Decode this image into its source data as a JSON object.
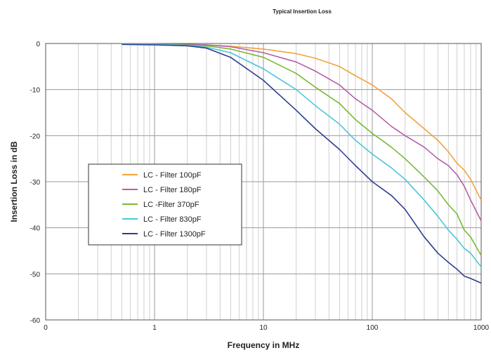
{
  "chart_data": {
    "type": "line",
    "title": "Typical Insertion Loss",
    "xlabel": "Frequency in MHz",
    "ylabel": "Insertion Loss in dB",
    "x_scale": "log",
    "xlim": [
      0.1,
      1000
    ],
    "ylim": [
      -60,
      0
    ],
    "x_ticks": [
      0.1,
      1,
      10,
      100,
      1000
    ],
    "x_tick_labels": [
      "0",
      "1",
      "10",
      "100",
      "1000"
    ],
    "y_ticks": [
      0,
      -10,
      -20,
      -30,
      -40,
      -50,
      -60
    ],
    "y_tick_labels": [
      "0",
      "-10",
      "-20",
      "-30",
      "-40",
      "-50",
      "-60"
    ],
    "grid": true,
    "legend_position": "left",
    "series": [
      {
        "name": "LC - Filter 100pF",
        "color": "#f2a23c",
        "x": [
          0.5,
          1,
          2,
          3,
          5,
          10,
          20,
          30,
          50,
          70,
          100,
          150,
          200,
          300,
          400,
          500,
          600,
          700,
          800,
          1000
        ],
        "y": [
          -0.1,
          -0.1,
          -0.2,
          -0.3,
          -0.6,
          -1.2,
          -2.2,
          -3.2,
          -5,
          -7,
          -9,
          -12,
          -15,
          -18.5,
          -21,
          -23.5,
          -26,
          -27.5,
          -29.5,
          -34
        ]
      },
      {
        "name": "LC - Filter 180pF",
        "color": "#b25fa8",
        "x": [
          0.5,
          1,
          2,
          3,
          5,
          10,
          20,
          30,
          50,
          70,
          100,
          150,
          200,
          300,
          400,
          500,
          600,
          700,
          800,
          1000
        ],
        "y": [
          -0.1,
          -0.1,
          -0.2,
          -0.3,
          -0.7,
          -2,
          -4,
          -6,
          -9,
          -12,
          -14.5,
          -18,
          -20,
          -22.5,
          -25,
          -26.5,
          -28.5,
          -31,
          -34,
          -38.5
        ]
      },
      {
        "name": "LC -Filter 370pF",
        "color": "#7ab834",
        "x": [
          0.5,
          1,
          2,
          3,
          5,
          10,
          20,
          30,
          50,
          70,
          100,
          150,
          200,
          300,
          400,
          500,
          600,
          700,
          800,
          1000
        ],
        "y": [
          -0.1,
          -0.2,
          -0.3,
          -0.5,
          -1.2,
          -3,
          -6.5,
          -9.5,
          -13,
          -16.5,
          -19.5,
          -22.5,
          -25,
          -29,
          -32,
          -35,
          -37,
          -40.5,
          -42,
          -46
        ]
      },
      {
        "name": "LC - Filter 830pF",
        "color": "#4cc5dc",
        "x": [
          0.5,
          1,
          2,
          3,
          5,
          10,
          20,
          30,
          50,
          70,
          100,
          150,
          200,
          300,
          400,
          500,
          600,
          700,
          800,
          1000
        ],
        "y": [
          -0.1,
          -0.2,
          -0.4,
          -0.8,
          -2,
          -5.5,
          -10,
          -13.5,
          -17.5,
          -21,
          -24,
          -27,
          -29.5,
          -34,
          -37.5,
          -40.5,
          -42.5,
          -44.5,
          -45.5,
          -48.5
        ]
      },
      {
        "name": "LC - Filter 1300pF",
        "color": "#2e3e8e",
        "x": [
          0.5,
          1,
          2,
          3,
          5,
          10,
          20,
          30,
          50,
          70,
          100,
          150,
          200,
          300,
          400,
          500,
          600,
          700,
          800,
          1000
        ],
        "y": [
          -0.2,
          -0.3,
          -0.5,
          -1,
          -3,
          -8,
          -14.5,
          -18.5,
          -23,
          -26.5,
          -30,
          -33,
          -36,
          -42,
          -45.5,
          -47.5,
          -49,
          -50.5,
          -51,
          -52
        ]
      }
    ]
  }
}
